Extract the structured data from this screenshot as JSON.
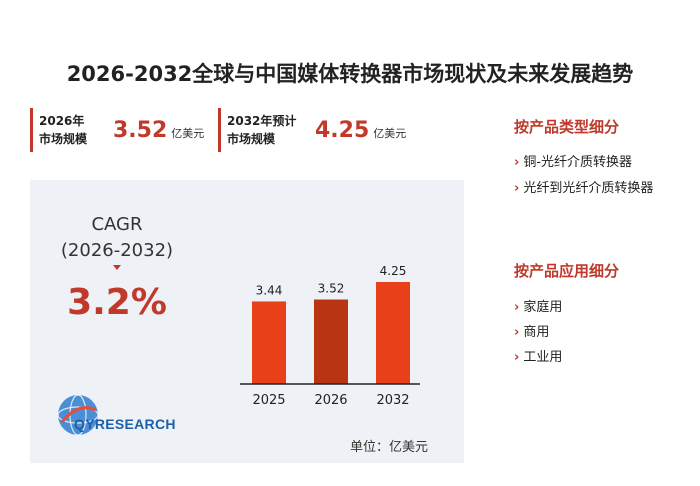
{
  "title": "2026-2032全球与中国媒体转换器市场现状及未来发展趋势",
  "stats": [
    {
      "label": "2026年\n市场规模",
      "value": "3.52",
      "unit": "亿美元"
    },
    {
      "label": "2032年预计\n市场规模",
      "value": "4.25",
      "unit": "亿美元"
    }
  ],
  "cagr": {
    "label": "CAGR\n(2026-2032)",
    "value": "3.2%"
  },
  "unit_note": "单位：亿美元",
  "logo_text": "QYRESEARCH",
  "colors": {
    "accent": "#c0392b",
    "bar_light": "#e8411a",
    "bar_dark": "#b83412",
    "panel": "#eef1f6"
  },
  "chart_data": {
    "type": "bar",
    "categories": [
      "2025",
      "2026",
      "2032"
    ],
    "values": [
      3.44,
      3.52,
      4.25
    ],
    "data_labels": [
      "3.44",
      "3.52",
      "4.25"
    ],
    "title": "",
    "xlabel": "",
    "ylabel": "",
    "ylim": [
      0,
      4.5
    ],
    "grid": false
  },
  "sidebar": {
    "type_heading": "按产品类型细分",
    "type_items": [
      "铜-光纤介质转换器",
      "光纤到光纤介质转换器"
    ],
    "app_heading": "按产品应用细分",
    "app_items": [
      "家庭用",
      "商用",
      "工业用"
    ]
  }
}
